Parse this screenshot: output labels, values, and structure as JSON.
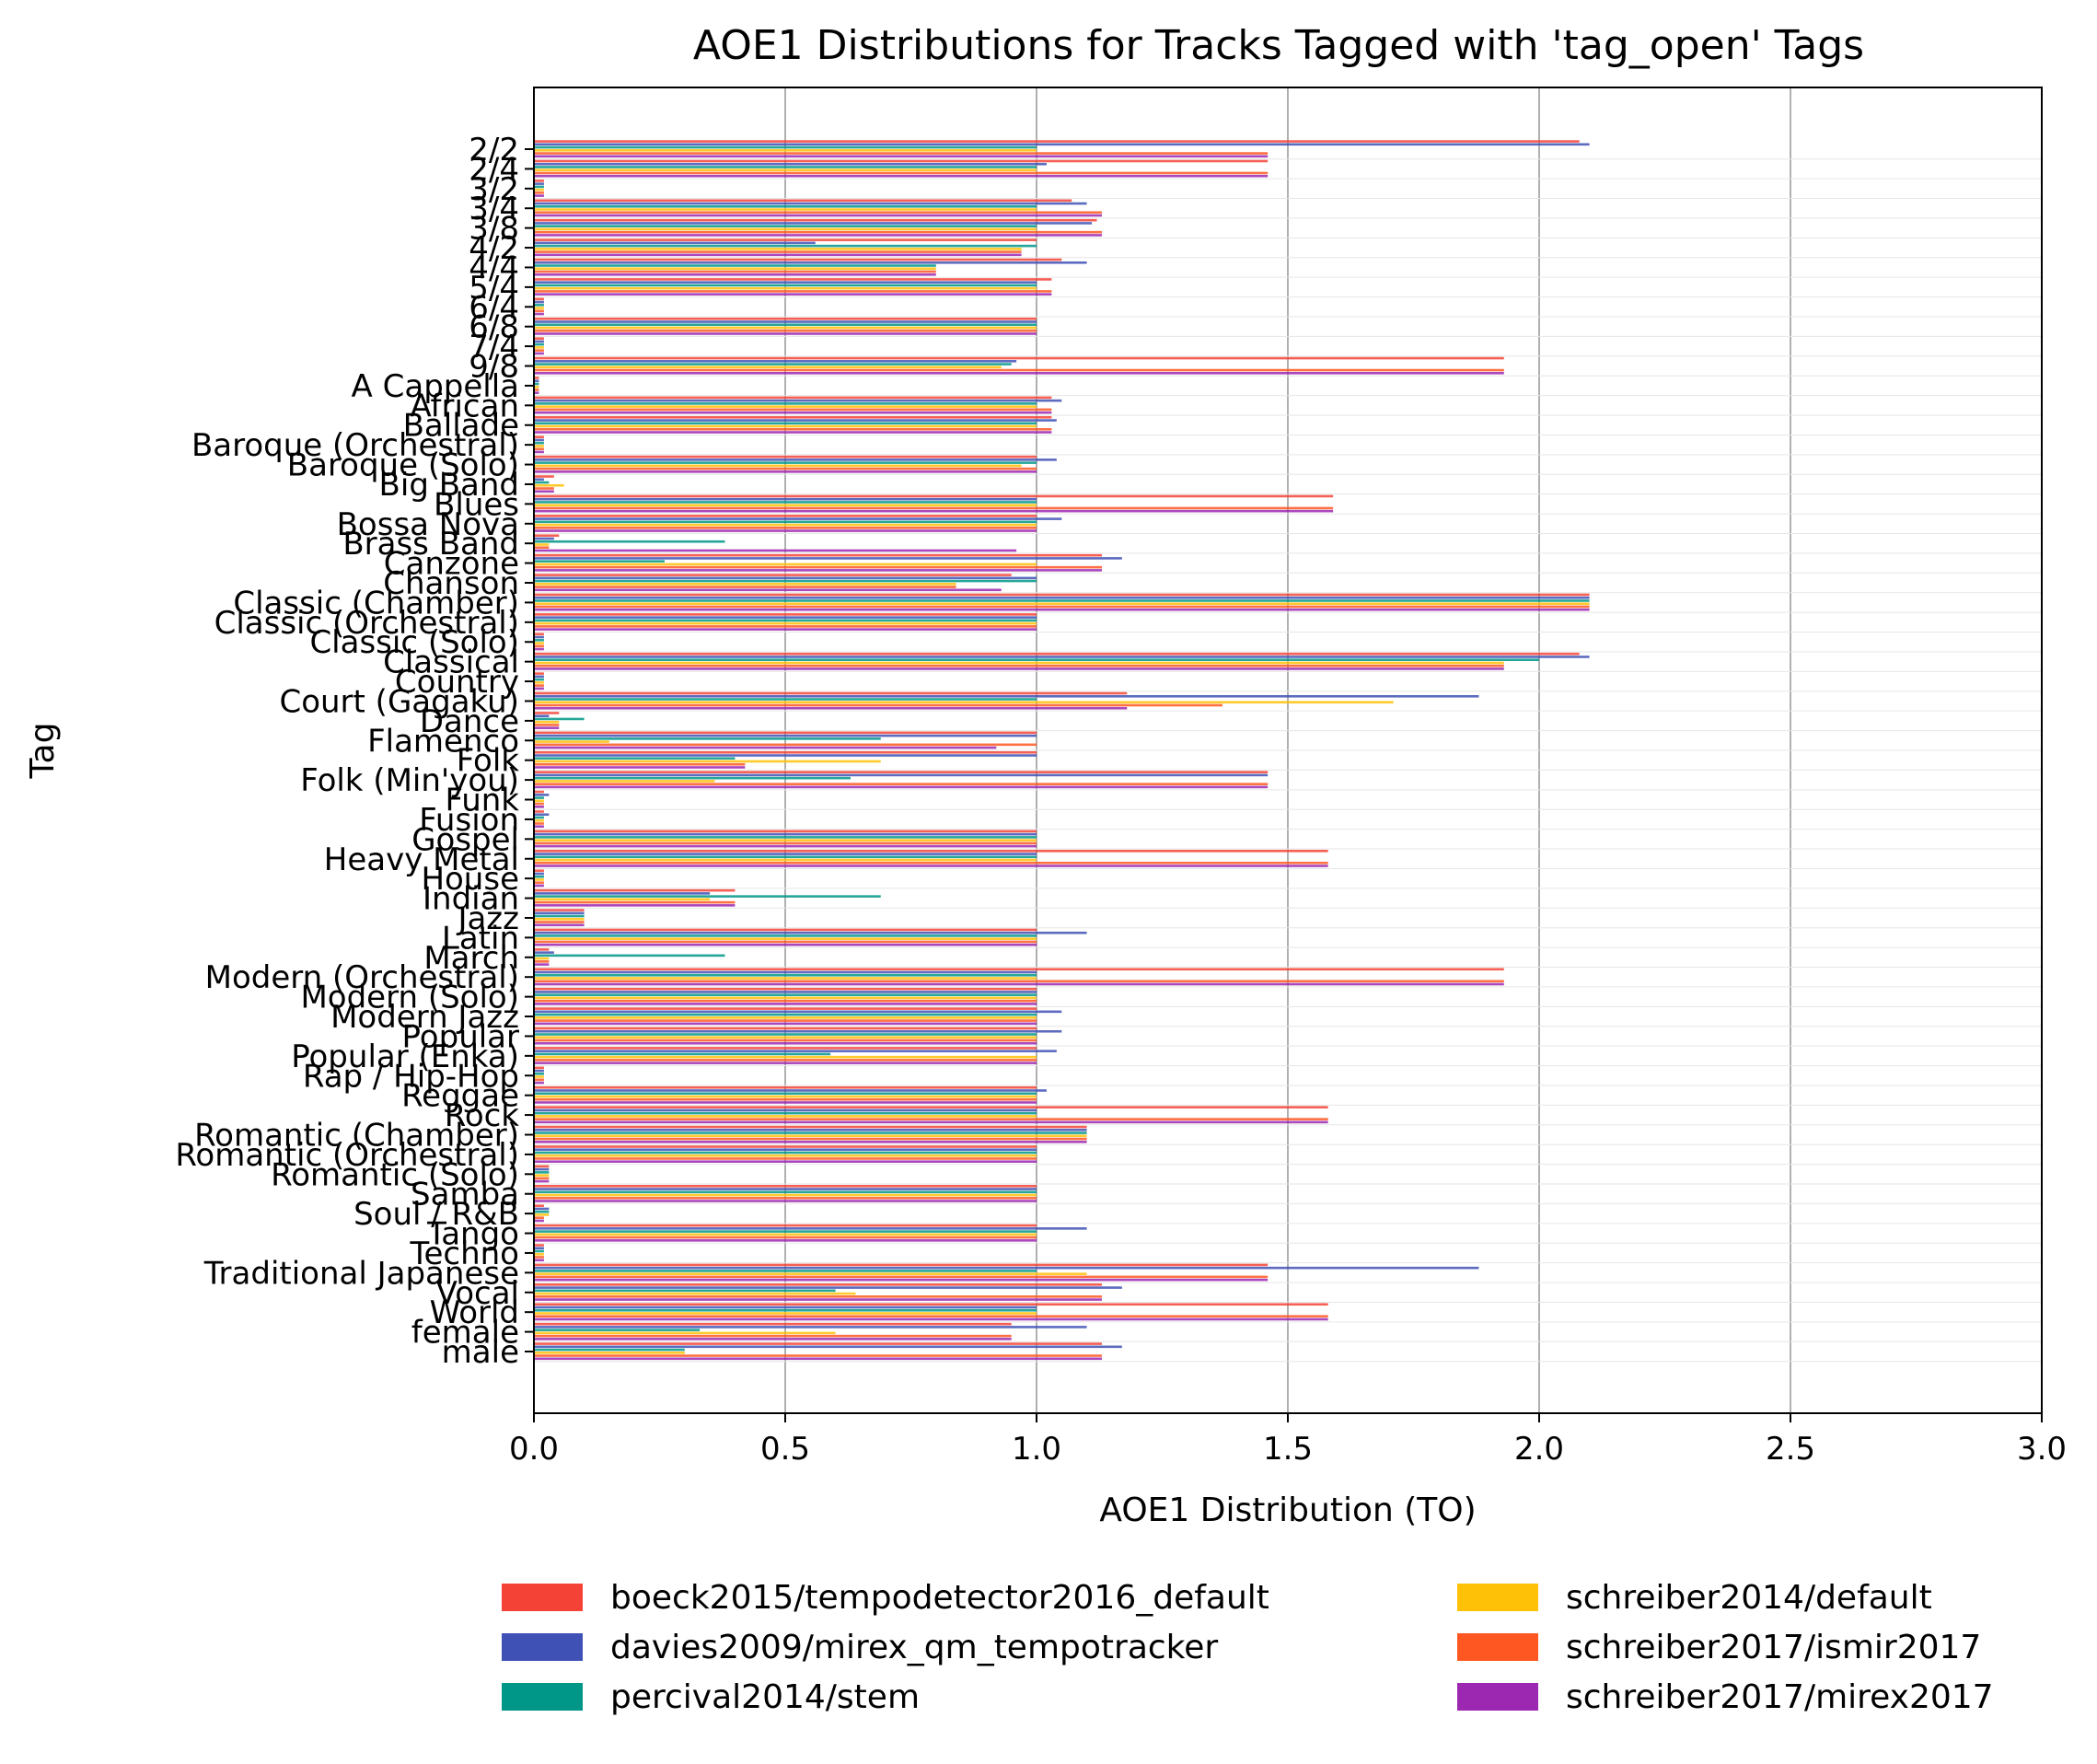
{
  "chart_data": {
    "type": "bar",
    "title": "AOE1 Distributions for Tracks Tagged with 'tag_open' Tags",
    "xlabel": "AOE1 Distribution (TO)",
    "ylabel": "Tag",
    "xlim": [
      0,
      3
    ],
    "xticks": [
      "0.0",
      "0.5",
      "1.0",
      "1.5",
      "2.0",
      "2.5",
      "3.0"
    ],
    "grid": "vertical",
    "legend_position": "below",
    "categories": [
      "2/2",
      "2/4",
      "3/2",
      "3/4",
      "3/8",
      "4/2",
      "4/4",
      "5/4",
      "6/4",
      "6/8",
      "7/4",
      "9/8",
      "A Cappella",
      "African",
      "Ballade",
      "Baroque (Orchestral)",
      "Baroque (Solo)",
      "Big Band",
      "Blues",
      "Bossa Nova",
      "Brass Band",
      "Canzone",
      "Chanson",
      "Classic (Chamber)",
      "Classic (Orchestral)",
      "Classic (Solo)",
      "Classical",
      "Country",
      "Court (Gagaku)",
      "Dance",
      "Flamenco",
      "Folk",
      "Folk (Min'you)",
      "Funk",
      "Fusion",
      "Gospel",
      "Heavy Metal",
      "House",
      "Indian",
      "Jazz",
      "Latin",
      "March",
      "Modern (Orchestral)",
      "Modern (Solo)",
      "Modern Jazz",
      "Popular",
      "Popular (Enka)",
      "Rap / Hip-Hop",
      "Reggae",
      "Rock",
      "Romantic (Chamber)",
      "Romantic (Orchestral)",
      "Romantic (Solo)",
      "Samba",
      "Soul / R&B",
      "Tango",
      "Techno",
      "Traditional Japanese",
      "Vocal",
      "World",
      "female",
      "male"
    ],
    "series": [
      {
        "name": "boeck2015/tempodetector2016_default",
        "color": "#f44336",
        "values": [
          2.08,
          1.46,
          0.02,
          1.07,
          1.12,
          1.0,
          1.05,
          1.03,
          0.02,
          1.0,
          0.02,
          1.93,
          0.01,
          1.03,
          1.03,
          0.02,
          1.0,
          0.04,
          1.59,
          1.0,
          0.05,
          1.13,
          0.95,
          2.1,
          1.0,
          0.02,
          2.08,
          0.02,
          1.18,
          0.05,
          1.0,
          1.0,
          1.46,
          0.02,
          0.02,
          1.0,
          1.58,
          0.02,
          0.4,
          0.1,
          1.0,
          0.03,
          1.93,
          1.0,
          1.0,
          1.0,
          1.0,
          0.02,
          1.0,
          1.58,
          1.1,
          1.0,
          0.03,
          1.0,
          0.02,
          1.0,
          0.02,
          1.46,
          1.13,
          1.58,
          0.95,
          1.13
        ]
      },
      {
        "name": "davies2009/mirex_qm_tempotracker",
        "color": "#3f51b5",
        "values": [
          2.1,
          1.02,
          0.02,
          1.1,
          1.11,
          0.56,
          1.1,
          1.0,
          0.02,
          1.0,
          0.02,
          0.96,
          0.01,
          1.05,
          1.04,
          0.02,
          1.04,
          0.02,
          1.0,
          1.05,
          0.04,
          1.17,
          1.0,
          2.1,
          1.0,
          0.02,
          2.1,
          0.02,
          1.88,
          0.03,
          1.0,
          1.0,
          1.46,
          0.03,
          0.03,
          1.0,
          1.0,
          0.02,
          0.35,
          0.1,
          1.1,
          0.04,
          1.0,
          1.0,
          1.05,
          1.05,
          1.04,
          0.02,
          1.02,
          1.0,
          1.1,
          1.0,
          0.03,
          1.0,
          0.03,
          1.1,
          0.02,
          1.88,
          1.17,
          1.0,
          1.1,
          1.17
        ]
      },
      {
        "name": "percival2014/stem",
        "color": "#009688",
        "values": [
          1.0,
          1.0,
          0.02,
          1.0,
          1.0,
          1.0,
          0.8,
          1.0,
          0.02,
          1.0,
          0.02,
          0.95,
          0.01,
          1.0,
          1.0,
          0.02,
          1.0,
          0.03,
          1.0,
          1.0,
          0.38,
          0.26,
          1.0,
          2.1,
          1.0,
          0.02,
          2.0,
          0.02,
          1.0,
          0.1,
          0.69,
          0.4,
          0.63,
          0.02,
          0.02,
          1.0,
          1.0,
          0.02,
          0.69,
          0.1,
          1.0,
          0.38,
          1.0,
          1.0,
          1.0,
          1.0,
          0.59,
          0.02,
          1.0,
          1.0,
          1.1,
          1.0,
          0.03,
          1.0,
          0.03,
          1.0,
          0.02,
          1.0,
          0.6,
          1.0,
          0.33,
          0.3
        ]
      },
      {
        "name": "schreiber2014/default",
        "color": "#ffc107",
        "values": [
          1.0,
          1.0,
          0.02,
          1.0,
          1.0,
          0.97,
          0.8,
          1.0,
          0.02,
          1.0,
          0.02,
          0.93,
          0.01,
          1.0,
          1.0,
          0.02,
          0.97,
          0.06,
          1.0,
          1.0,
          0.03,
          1.0,
          0.84,
          2.1,
          1.0,
          0.02,
          1.93,
          0.02,
          1.71,
          0.05,
          0.15,
          0.69,
          0.36,
          0.02,
          0.02,
          1.0,
          1.0,
          0.02,
          0.35,
          0.1,
          1.0,
          0.03,
          1.0,
          1.0,
          1.0,
          1.0,
          1.0,
          0.02,
          1.0,
          1.0,
          1.1,
          1.0,
          0.03,
          1.0,
          0.03,
          1.0,
          0.02,
          1.1,
          0.64,
          1.0,
          0.6,
          0.3
        ]
      },
      {
        "name": "schreiber2017/ismir2017",
        "color": "#ff5722",
        "values": [
          1.46,
          1.46,
          0.02,
          1.13,
          1.13,
          0.97,
          0.8,
          1.03,
          0.02,
          1.0,
          0.02,
          1.93,
          0.01,
          1.03,
          1.03,
          0.02,
          1.0,
          0.04,
          1.59,
          1.0,
          0.03,
          1.13,
          0.84,
          2.1,
          1.0,
          0.02,
          1.93,
          0.02,
          1.37,
          0.05,
          1.0,
          0.42,
          1.46,
          0.02,
          0.02,
          1.0,
          1.58,
          0.02,
          0.4,
          0.1,
          1.0,
          0.03,
          1.93,
          1.0,
          1.0,
          1.0,
          1.0,
          0.02,
          1.0,
          1.58,
          1.1,
          1.0,
          0.03,
          1.0,
          0.02,
          1.0,
          0.02,
          1.46,
          1.13,
          1.58,
          0.95,
          1.13
        ]
      },
      {
        "name": "schreiber2017/mirex2017",
        "color": "#9c27b0",
        "values": [
          1.46,
          1.46,
          0.02,
          1.13,
          1.13,
          0.97,
          0.8,
          1.03,
          0.02,
          1.0,
          0.02,
          1.93,
          0.01,
          1.03,
          1.03,
          0.02,
          1.0,
          0.04,
          1.59,
          1.0,
          0.96,
          1.13,
          0.93,
          2.1,
          1.0,
          0.02,
          1.93,
          0.02,
          1.18,
          0.05,
          0.92,
          0.42,
          1.46,
          0.02,
          0.02,
          1.0,
          1.58,
          0.02,
          0.4,
          0.1,
          1.0,
          0.03,
          1.93,
          1.0,
          1.0,
          1.0,
          1.0,
          0.02,
          1.0,
          1.58,
          1.1,
          1.0,
          0.03,
          1.0,
          0.02,
          1.0,
          0.02,
          1.46,
          1.13,
          1.58,
          0.95,
          1.13
        ]
      }
    ]
  }
}
